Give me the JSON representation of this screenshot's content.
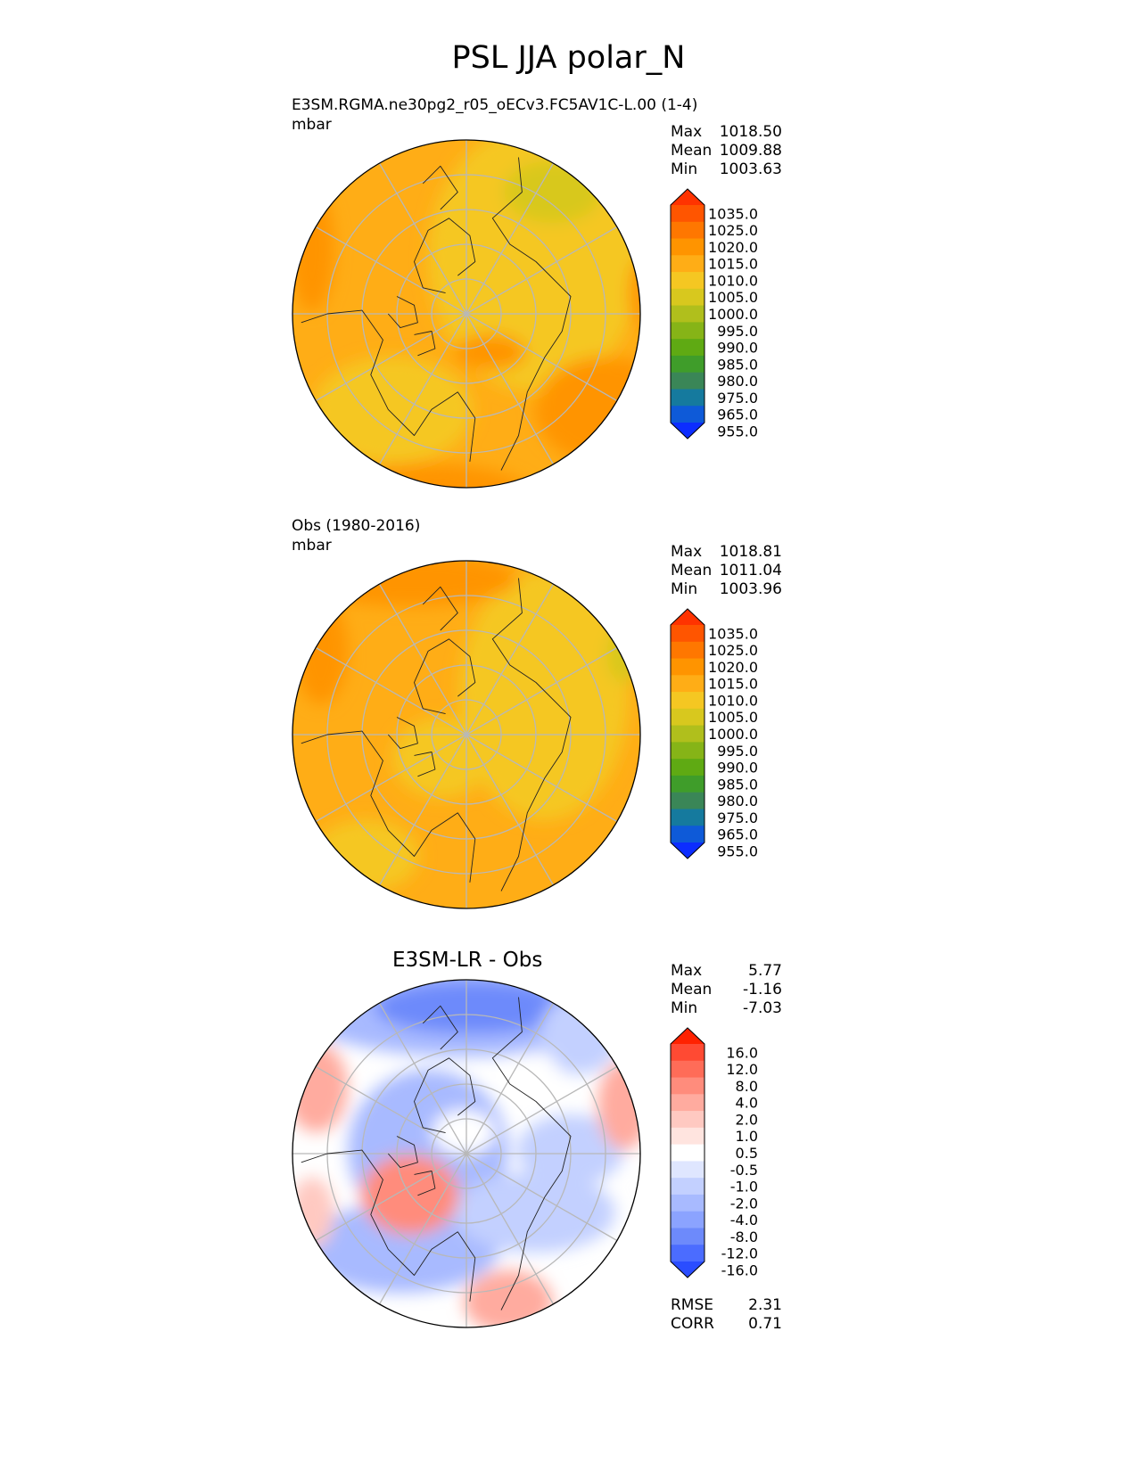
{
  "chart_data": {
    "type": "polar contour map",
    "title": "PSL JJA polar_N",
    "panels": [
      {
        "id": "model",
        "title": "E3SM.RGMA.ne30pg2_r05_oECv3.FC5AV1C-L.00 (1-4)",
        "units": "mbar",
        "stats": [
          {
            "label": "Max",
            "value": "1018.50"
          },
          {
            "label": "Mean",
            "value": "1009.88"
          },
          {
            "label": "Min",
            "value": "1003.63"
          }
        ],
        "colorbar": {
          "levels": [
            "1035.0",
            "1025.0",
            "1020.0",
            "1015.0",
            "1010.0",
            "1005.0",
            "1000.0",
            "995.0",
            "990.0",
            "985.0",
            "980.0",
            "975.0",
            "965.0",
            "955.0"
          ],
          "colors": [
            "#ff3300",
            "#ff5500",
            "#ff7700",
            "#ff9400",
            "#ffad16",
            "#f5c722",
            "#d8c81e",
            "#b0bf1c",
            "#86b417",
            "#5faa13",
            "#3f9d2a",
            "#3a8657",
            "#157a9e",
            "#0e5ad8",
            "#0c2dff"
          ]
        }
      },
      {
        "id": "obs",
        "title": "Obs (1980-2016)",
        "units": "mbar",
        "stats": [
          {
            "label": "Max",
            "value": "1018.81"
          },
          {
            "label": "Mean",
            "value": "1011.04"
          },
          {
            "label": "Min",
            "value": "1003.96"
          }
        ],
        "colorbar": {
          "levels": [
            "1035.0",
            "1025.0",
            "1020.0",
            "1015.0",
            "1010.0",
            "1005.0",
            "1000.0",
            "995.0",
            "990.0",
            "985.0",
            "980.0",
            "975.0",
            "965.0",
            "955.0"
          ],
          "colors": [
            "#ff3300",
            "#ff5500",
            "#ff7700",
            "#ff9400",
            "#ffad16",
            "#f5c722",
            "#d8c81e",
            "#b0bf1c",
            "#86b417",
            "#5faa13",
            "#3f9d2a",
            "#3a8657",
            "#157a9e",
            "#0e5ad8",
            "#0c2dff"
          ]
        }
      },
      {
        "id": "diff",
        "title": "E3SM-LR - Obs",
        "units": "",
        "stats": [
          {
            "label": "Max",
            "value": "5.77"
          },
          {
            "label": "Mean",
            "value": "-1.16"
          },
          {
            "label": "Min",
            "value": "-7.03"
          }
        ],
        "metrics": [
          {
            "label": "RMSE",
            "value": "2.31"
          },
          {
            "label": "CORR",
            "value": "0.71"
          }
        ],
        "colorbar": {
          "levels": [
            "16.0",
            "12.0",
            "8.0",
            "4.0",
            "2.0",
            "1.0",
            "0.5",
            "-0.5",
            "-1.0",
            "-2.0",
            "-4.0",
            "-8.0",
            "-12.0",
            "-16.0"
          ],
          "colors": [
            "#ff2200",
            "#ff4a33",
            "#ff6c58",
            "#ff8c7c",
            "#ffab9f",
            "#ffc9c1",
            "#ffe4df",
            "#ffffff",
            "#dfe6ff",
            "#c3d0ff",
            "#a8baff",
            "#8ba3ff",
            "#6d8afb",
            "#4b6cff",
            "#2a4dff"
          ]
        }
      }
    ]
  }
}
